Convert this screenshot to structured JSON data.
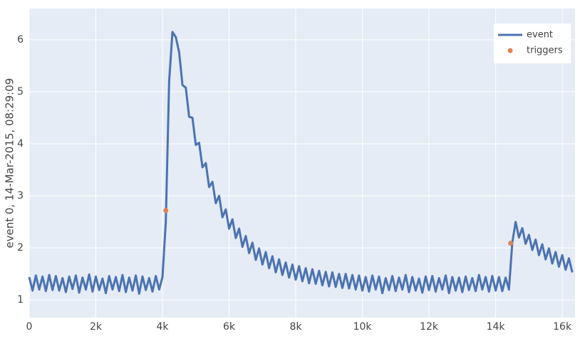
{
  "chart_data": {
    "type": "line",
    "ylabel": "event 0, 14-Mar-2015, 08:29:09",
    "xlim": [
      0,
      16383
    ],
    "ylim": [
      0.66,
      6.6
    ],
    "xticks": [
      0,
      {
        "value": 2000,
        "label": "2k"
      },
      {
        "value": 4000,
        "label": "4k"
      },
      {
        "value": 6000,
        "label": "6k"
      },
      {
        "value": 8000,
        "label": "8k"
      },
      {
        "value": 10000,
        "label": "10k"
      },
      {
        "value": 12000,
        "label": "12k"
      },
      {
        "value": 14000,
        "label": "14k"
      },
      {
        "value": 16000,
        "label": "16k"
      }
    ],
    "yticks": [
      1,
      2,
      3,
      4,
      5,
      6
    ],
    "grid": true,
    "legend": "top-right",
    "series": [
      {
        "name": "event",
        "color": "#4c72b0",
        "mode": "lines",
        "x": [
          0,
          100,
          200,
          300,
          400,
          500,
          600,
          700,
          800,
          900,
          1000,
          1100,
          1200,
          1300,
          1400,
          1500,
          1600,
          1700,
          1800,
          1900,
          2000,
          2100,
          2200,
          2300,
          2400,
          2500,
          2600,
          2700,
          2800,
          2900,
          3000,
          3100,
          3200,
          3300,
          3400,
          3500,
          3600,
          3700,
          3800,
          3900,
          4000,
          4100,
          4200,
          4300,
          4400,
          4500,
          4600,
          4700,
          4800,
          4900,
          5000,
          5100,
          5200,
          5300,
          5400,
          5500,
          5600,
          5700,
          5800,
          5900,
          6000,
          6100,
          6200,
          6300,
          6400,
          6500,
          6600,
          6700,
          6800,
          6900,
          7000,
          7100,
          7200,
          7300,
          7400,
          7500,
          7600,
          7700,
          7800,
          7900,
          8000,
          8100,
          8200,
          8300,
          8400,
          8500,
          8600,
          8700,
          8800,
          8900,
          9000,
          9100,
          9200,
          9300,
          9400,
          9500,
          9600,
          9700,
          9800,
          9900,
          10000,
          10100,
          10200,
          10300,
          10400,
          10500,
          10600,
          10700,
          10800,
          10900,
          11000,
          11100,
          11200,
          11300,
          11400,
          11500,
          11600,
          11700,
          11800,
          11900,
          12000,
          12100,
          12200,
          12300,
          12400,
          12500,
          12600,
          12700,
          12800,
          12900,
          13000,
          13100,
          13200,
          13300,
          13400,
          13500,
          13600,
          13700,
          13800,
          13900,
          14000,
          14100,
          14200,
          14300,
          14400,
          14500,
          14600,
          14700,
          14800,
          14900,
          15000,
          15100,
          15200,
          15300,
          15400,
          15500,
          15600,
          15700,
          15800,
          15900,
          16000,
          16100,
          16200,
          16300
        ],
        "values": [
          1.44,
          1.18,
          1.47,
          1.2,
          1.45,
          1.17,
          1.48,
          1.19,
          1.46,
          1.18,
          1.42,
          1.15,
          1.45,
          1.21,
          1.47,
          1.14,
          1.43,
          1.2,
          1.49,
          1.16,
          1.45,
          1.19,
          1.41,
          1.13,
          1.46,
          1.2,
          1.44,
          1.17,
          1.48,
          1.15,
          1.43,
          1.18,
          1.47,
          1.12,
          1.45,
          1.19,
          1.42,
          1.16,
          1.46,
          1.2,
          1.44,
          2.5,
          5.2,
          6.15,
          6.05,
          5.76,
          5.13,
          5.08,
          4.52,
          4.5,
          3.98,
          4.02,
          3.55,
          3.63,
          3.17,
          3.27,
          2.86,
          3.0,
          2.59,
          2.74,
          2.37,
          2.55,
          2.19,
          2.37,
          2.02,
          2.23,
          1.9,
          2.1,
          1.77,
          1.99,
          1.68,
          1.92,
          1.61,
          1.84,
          1.53,
          1.78,
          1.48,
          1.72,
          1.43,
          1.68,
          1.39,
          1.65,
          1.36,
          1.61,
          1.32,
          1.59,
          1.31,
          1.56,
          1.28,
          1.54,
          1.26,
          1.53,
          1.25,
          1.5,
          1.23,
          1.5,
          1.22,
          1.48,
          1.2,
          1.47,
          1.18,
          1.44,
          1.16,
          1.47,
          1.2,
          1.45,
          1.13,
          1.42,
          1.19,
          1.46,
          1.17,
          1.43,
          1.2,
          1.48,
          1.15,
          1.44,
          1.18,
          1.41,
          1.14,
          1.45,
          1.19,
          1.46,
          1.16,
          1.42,
          1.2,
          1.47,
          1.13,
          1.44,
          1.18,
          1.43,
          1.15,
          1.45,
          1.19,
          1.42,
          1.17,
          1.48,
          1.2,
          1.44,
          1.16,
          1.46,
          1.18,
          1.44,
          1.17,
          1.43,
          1.2,
          2.1,
          2.5,
          2.2,
          2.38,
          2.08,
          2.25,
          1.96,
          2.16,
          1.86,
          2.07,
          1.78,
          1.99,
          1.7,
          1.92,
          1.64,
          1.86,
          1.58,
          1.8,
          1.53
        ]
      },
      {
        "name": "triggers",
        "color": "#dd8452",
        "mode": "markers",
        "x": [
          4100,
          14450
        ],
        "values": [
          2.72,
          2.09
        ]
      }
    ]
  }
}
